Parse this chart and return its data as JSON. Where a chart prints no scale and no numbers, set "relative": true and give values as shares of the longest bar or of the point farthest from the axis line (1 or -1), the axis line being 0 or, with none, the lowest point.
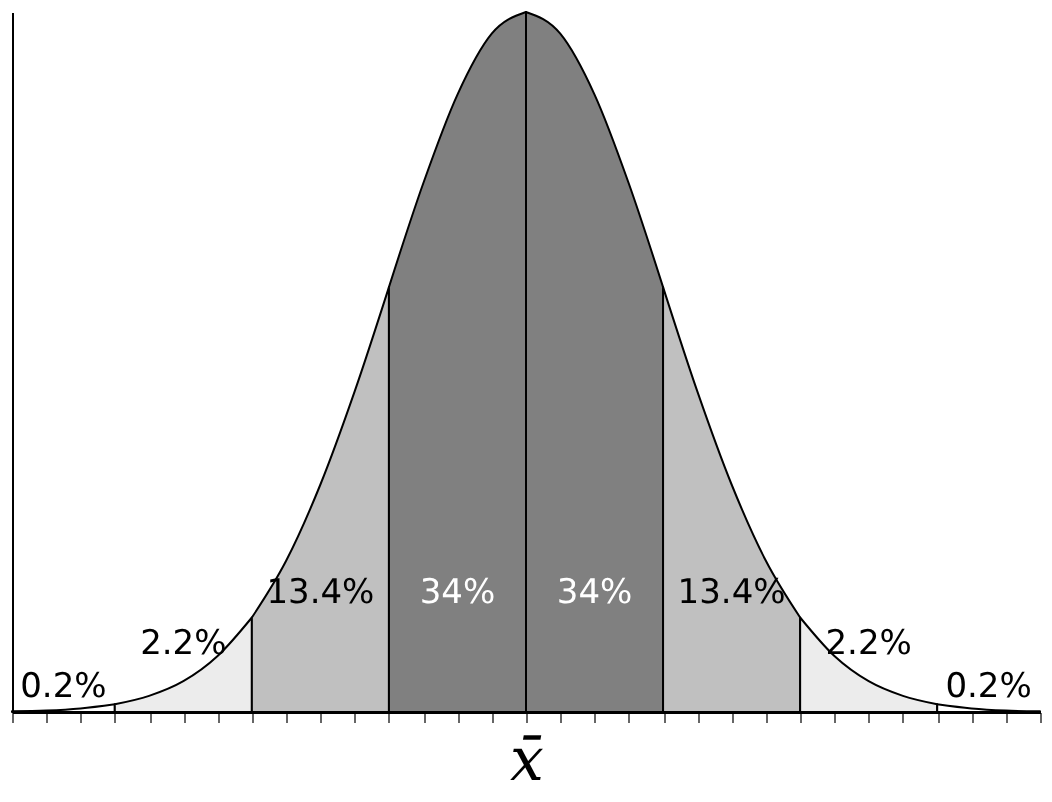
{
  "chart_data": {
    "type": "area",
    "relative": true,
    "xlabel": "x̄",
    "tick_labels": false,
    "grid": false,
    "categories": [
      null,
      null,
      null,
      null,
      null,
      null,
      null,
      null,
      null,
      null,
      null,
      null,
      null,
      null,
      null,
      null,
      null,
      null,
      null,
      null,
      null,
      null,
      null,
      null,
      null,
      null,
      null,
      null,
      null,
      null,
      null
    ],
    "series": [
      {
        "color": "#ffffff",
        "values": [
          0.001,
          0.002,
          0.005,
          0.011,
          null,
          null,
          null,
          null,
          null,
          null,
          null,
          null,
          null,
          null,
          null,
          null,
          null,
          null,
          null,
          null,
          null,
          null,
          null,
          null,
          null,
          null,
          null,
          null,
          null,
          null,
          null
        ]
      },
      {
        "color": "#ececec",
        "values": [
          null,
          null,
          null,
          0.011,
          0.023,
          0.044,
          0.08,
          0.135,
          null,
          null,
          null,
          null,
          null,
          null,
          null,
          null,
          null,
          null,
          null,
          null,
          null,
          null,
          null,
          null,
          null,
          null,
          null,
          null,
          null,
          null,
          null
        ]
      },
      {
        "color": "#c0c0c0",
        "values": [
          null,
          null,
          null,
          null,
          null,
          null,
          null,
          0.135,
          0.216,
          0.325,
          0.458,
          0.607,
          null,
          null,
          null,
          null,
          null,
          null,
          null,
          null,
          null,
          null,
          null,
          null,
          null,
          null,
          null,
          null,
          null,
          null,
          null
        ]
      },
      {
        "color": "#808080",
        "values": [
          null,
          null,
          null,
          null,
          null,
          null,
          null,
          null,
          null,
          null,
          null,
          0.607,
          0.755,
          0.882,
          0.969,
          1,
          null,
          null,
          null,
          null,
          null,
          null,
          null,
          null,
          null,
          null,
          null,
          null,
          null,
          null,
          null
        ]
      },
      {
        "color": "#808080",
        "values": [
          null,
          null,
          null,
          null,
          null,
          null,
          null,
          null,
          null,
          null,
          null,
          null,
          null,
          null,
          null,
          1,
          0.969,
          0.882,
          0.755,
          0.607,
          null,
          null,
          null,
          null,
          null,
          null,
          null,
          null,
          null,
          null,
          null
        ]
      },
      {
        "color": "#c0c0c0",
        "values": [
          null,
          null,
          null,
          null,
          null,
          null,
          null,
          null,
          null,
          null,
          null,
          null,
          null,
          null,
          null,
          null,
          null,
          null,
          null,
          0.607,
          0.458,
          0.325,
          0.216,
          0.135,
          null,
          null,
          null,
          null,
          null,
          null,
          null
        ]
      },
      {
        "color": "#ececec",
        "values": [
          null,
          null,
          null,
          null,
          null,
          null,
          null,
          null,
          null,
          null,
          null,
          null,
          null,
          null,
          null,
          null,
          null,
          null,
          null,
          null,
          null,
          null,
          null,
          0.135,
          0.08,
          0.044,
          0.023,
          0.011,
          null,
          null,
          null
        ]
      },
      {
        "color": "#ffffff",
        "values": [
          null,
          null,
          null,
          null,
          null,
          null,
          null,
          null,
          null,
          null,
          null,
          null,
          null,
          null,
          null,
          null,
          null,
          null,
          null,
          null,
          null,
          null,
          null,
          null,
          null,
          null,
          null,
          0.011,
          0.005,
          0.002,
          0.001
        ]
      }
    ],
    "annotations": [
      "0.2%",
      "2.2%",
      "13.4%",
      "34%",
      "34%",
      "13.4%",
      "2.2%",
      "0.2%"
    ]
  }
}
